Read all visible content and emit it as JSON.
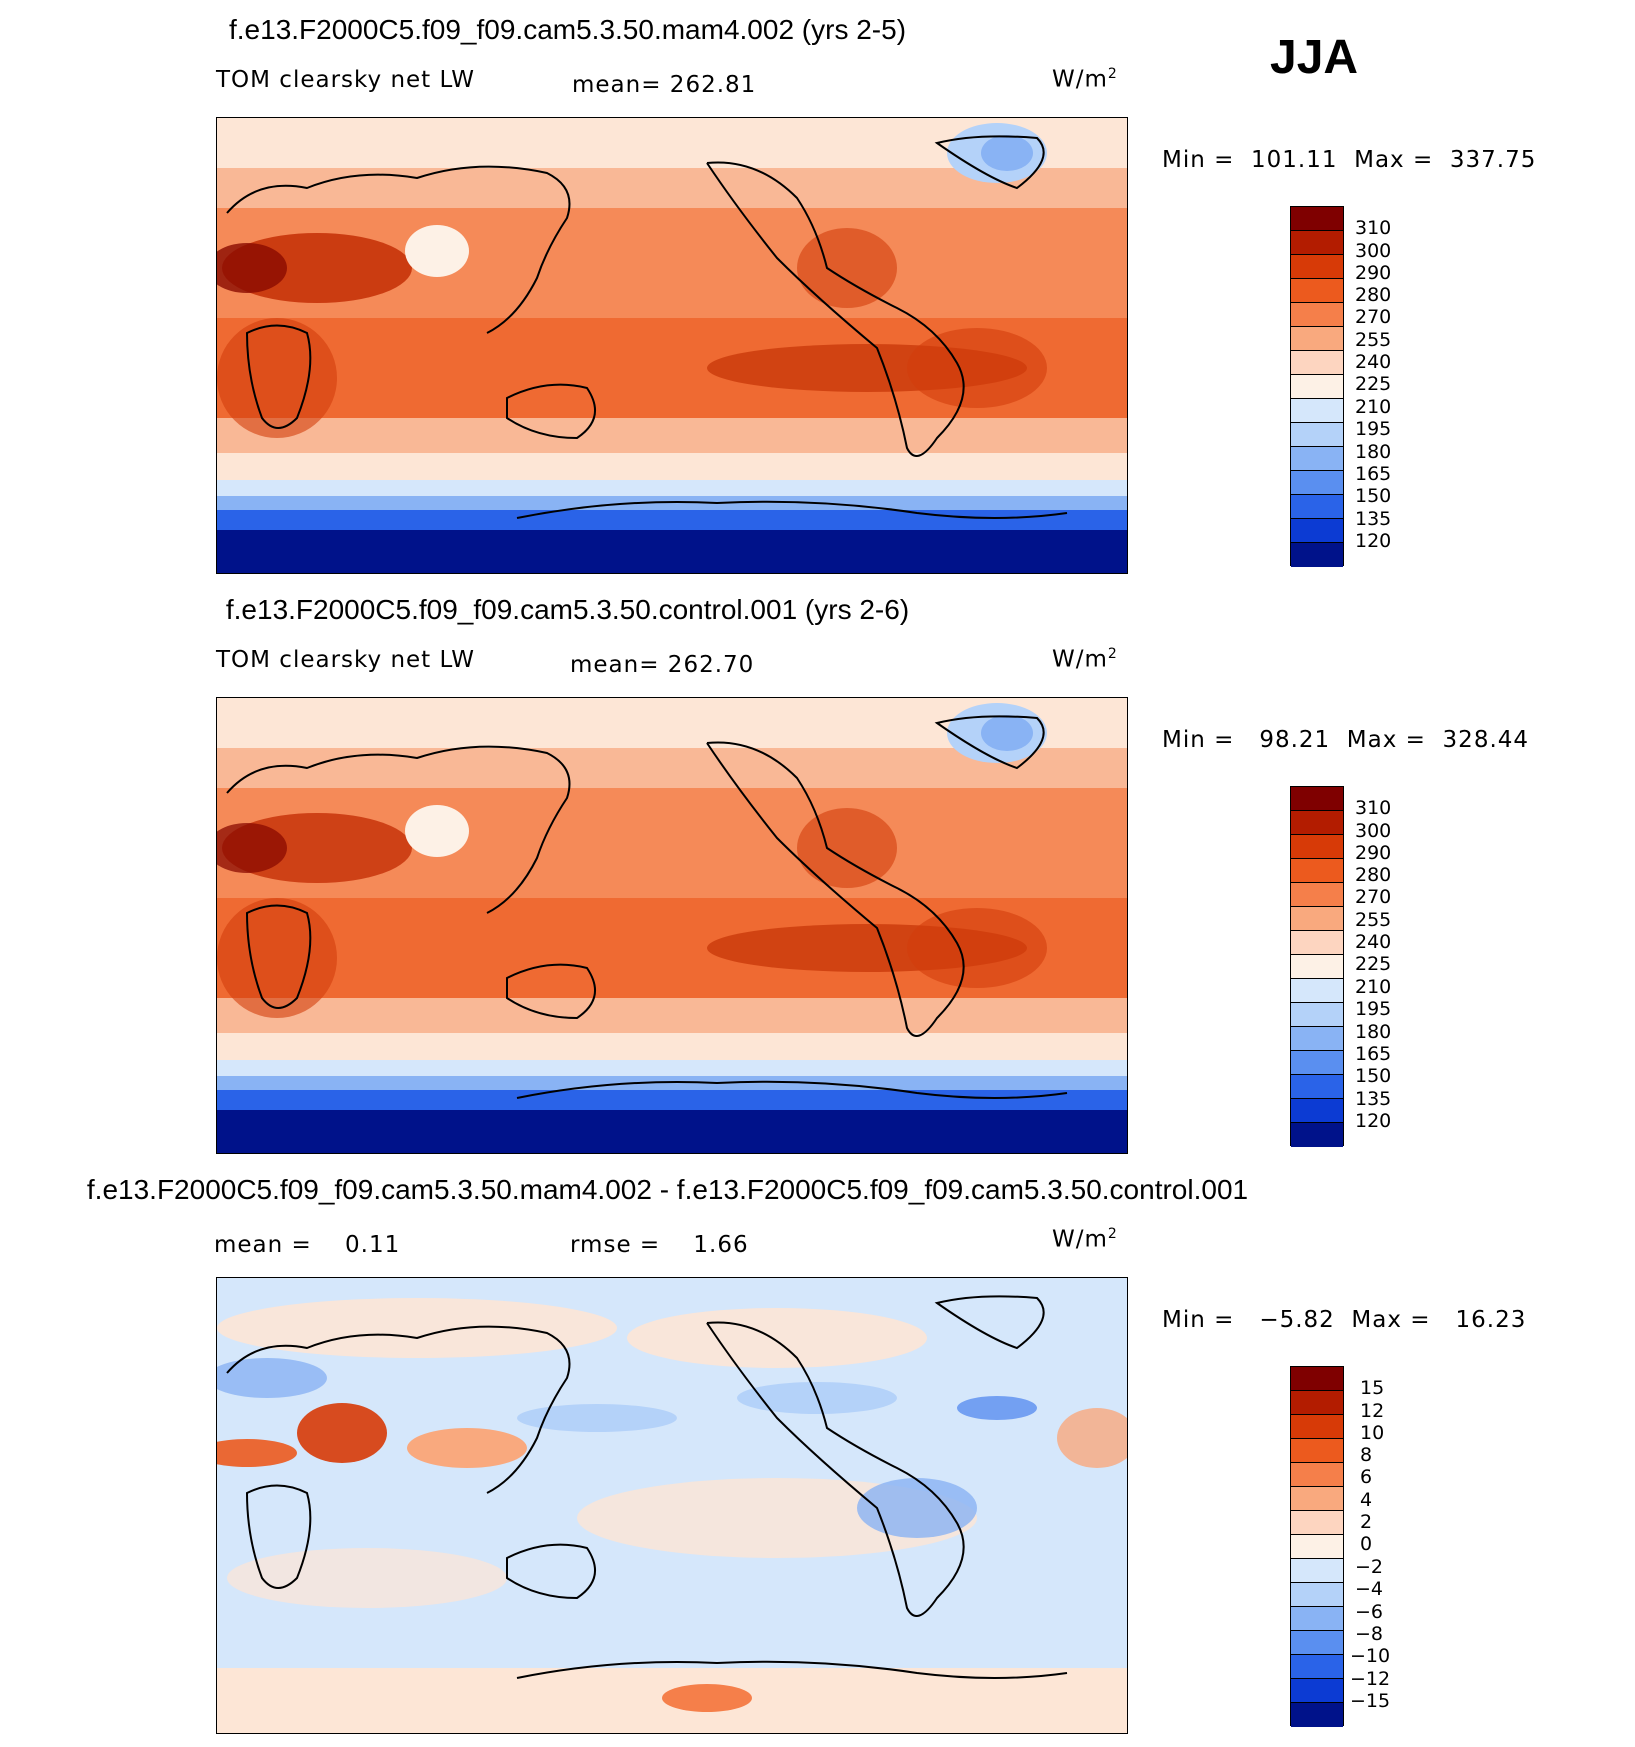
{
  "season": "JJA",
  "units": "W/m",
  "units_sup": "2",
  "panels": [
    {
      "title": "f.e13.F2000C5.f09_f09.cam5.3.50.mam4.002 (yrs 2-5)",
      "variable": "TOM clearsky net LW",
      "stat": "mean= 262.81",
      "minmax": "Min =  101.11  Max =  337.75"
    },
    {
      "title": "f.e13.F2000C5.f09_f09.cam5.3.50.control.001 (yrs 2-6)",
      "variable": "TOM clearsky net LW",
      "stat": "mean= 262.70",
      "minmax": "Min =   98.21  Max =  328.44"
    },
    {
      "title": "f.e13.F2000C5.f09_f09.cam5.3.50.mam4.002 - f.e13.F2000C5.f09_f09.cam5.3.50.control.001",
      "stat": "mean =    0.11",
      "stat2": "rmse =    1.66",
      "minmax": "Min =   −5.82  Max =   16.23"
    }
  ],
  "chart_data": [
    {
      "type": "heatmap",
      "title": "f.e13.F2000C5.f09_f09.cam5.3.50.mam4.002 (yrs 2-5)",
      "variable": "TOM clearsky net LW",
      "units": "W/m2",
      "mean": 262.81,
      "min": 101.11,
      "max": 337.75,
      "colorbar_levels": [
        310,
        300,
        290,
        280,
        270,
        255,
        240,
        225,
        210,
        195,
        180,
        165,
        150,
        135,
        120
      ],
      "colors": [
        "#7f0000",
        "#b31c00",
        "#d73a07",
        "#ec5a1e",
        "#f57f4a",
        "#f9a97e",
        "#fdd5c0",
        "#fdf1e6",
        "#d5e7fb",
        "#b4d2f9",
        "#89b3f4",
        "#5a8ff0",
        "#2a63e8",
        "#0c3bd3",
        "#00128a"
      ]
    },
    {
      "type": "heatmap",
      "title": "f.e13.F2000C5.f09_f09.cam5.3.50.control.001 (yrs 2-6)",
      "variable": "TOM clearsky net LW",
      "units": "W/m2",
      "mean": 262.7,
      "min": 98.21,
      "max": 328.44,
      "colorbar_levels": [
        310,
        300,
        290,
        280,
        270,
        255,
        240,
        225,
        210,
        195,
        180,
        165,
        150,
        135,
        120
      ],
      "colors": [
        "#7f0000",
        "#b31c00",
        "#d73a07",
        "#ec5a1e",
        "#f57f4a",
        "#f9a97e",
        "#fdd5c0",
        "#fdf1e6",
        "#d5e7fb",
        "#b4d2f9",
        "#89b3f4",
        "#5a8ff0",
        "#2a63e8",
        "#0c3bd3",
        "#00128a"
      ]
    },
    {
      "type": "heatmap",
      "title": "f.e13.F2000C5.f09_f09.cam5.3.50.mam4.002 - f.e13.F2000C5.f09_f09.cam5.3.50.control.001",
      "units": "W/m2",
      "mean": 0.11,
      "rmse": 1.66,
      "min": -5.82,
      "max": 16.23,
      "colorbar_levels": [
        "15",
        "12",
        "10",
        "8",
        "6",
        "4",
        "2",
        "0",
        "−2",
        "−4",
        "−6",
        "−8",
        "−10",
        "−12",
        "−15"
      ],
      "colors": [
        "#7f0000",
        "#b31c00",
        "#d73a07",
        "#ec5a1e",
        "#f57f4a",
        "#f9a97e",
        "#fdd5c0",
        "#fdf1e6",
        "#d5e7fb",
        "#b4d2f9",
        "#89b3f4",
        "#5a8ff0",
        "#2a63e8",
        "#0c3bd3",
        "#00128a"
      ]
    }
  ]
}
